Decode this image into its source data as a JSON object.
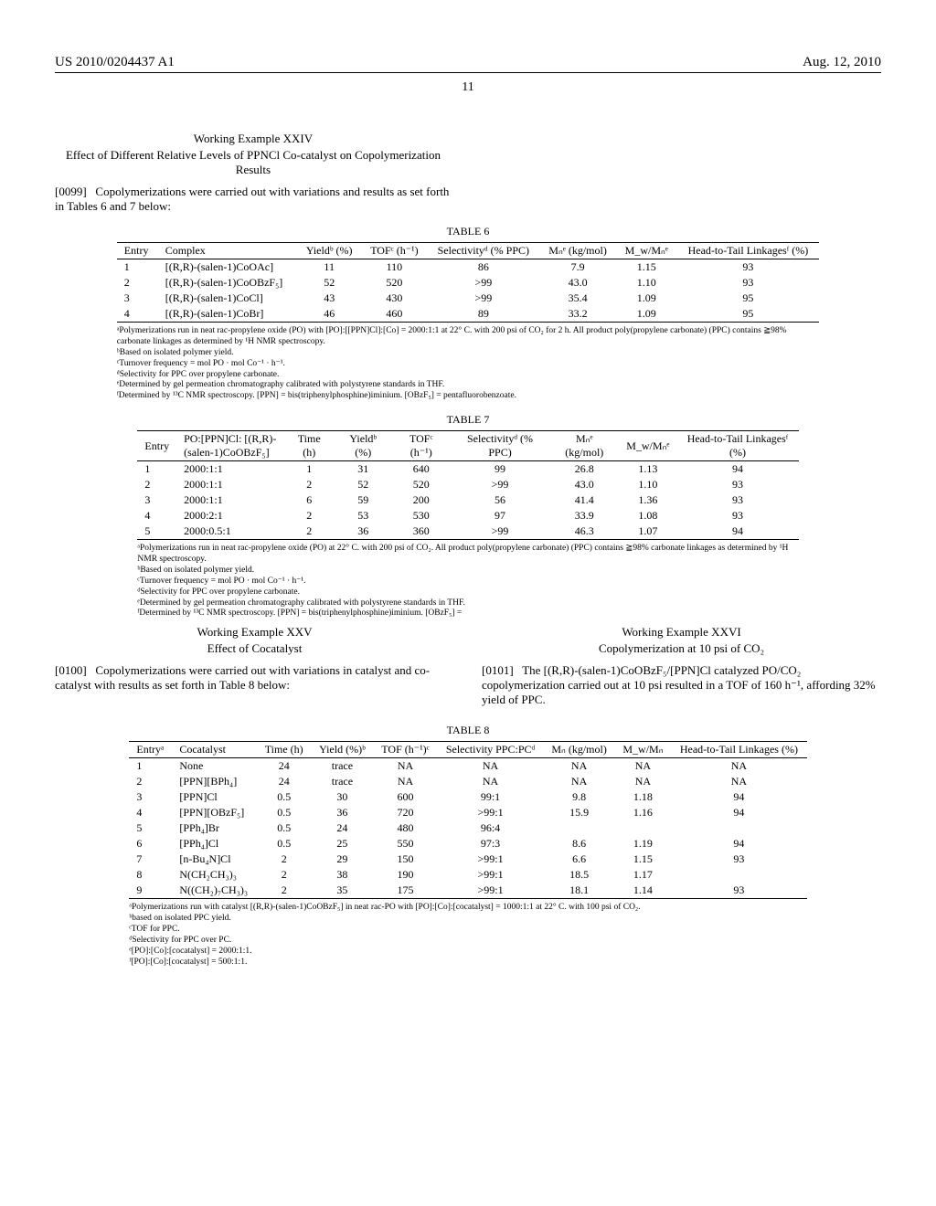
{
  "header": {
    "pub_no": "US 2010/0204437 A1",
    "pub_date": "Aug. 12, 2010",
    "page_no": "11"
  },
  "example24": {
    "title": "Working Example XXIV",
    "subtitle": "Effect of Different Relative Levels of PPNCl Co-catalyst on Copolymerization Results",
    "para_ref": "[0099]",
    "para_text": "Copolymerizations were carried out with variations and results as set forth in Tables 6 and 7 below:"
  },
  "table6": {
    "caption": "TABLE 6",
    "columns": [
      "Entry",
      "Complex",
      "Yieldᵇ (%)",
      "TOFᶜ (h⁻¹)",
      "Selectivityᵈ (% PPC)",
      "Mₙᵉ (kg/mol)",
      "M_w/Mₙᵉ",
      "Head-to-Tail Linkagesᶠ (%)"
    ],
    "rows": [
      [
        "1",
        "[(R,R)-(salen-1)CoOAc]",
        "11",
        "110",
        "86",
        "7.9",
        "1.15",
        "93"
      ],
      [
        "2",
        "[(R,R)-(salen-1)CoOBzF₅]",
        "52",
        "520",
        ">99",
        "43.0",
        "1.10",
        "93"
      ],
      [
        "3",
        "[(R,R)-(salen-1)CoCl]",
        "43",
        "430",
        ">99",
        "35.4",
        "1.09",
        "95"
      ],
      [
        "4",
        "[(R,R)-(salen-1)CoBr]",
        "46",
        "460",
        "89",
        "33.2",
        "1.09",
        "95"
      ]
    ],
    "footnotes": [
      "ᵃPolymerizations run in neat rac-propylene oxide (PO) with [PO]:[[PPN]Cl]:[Co] = 2000:1:1 at 22° C. with 200 psi of CO₂ for 2 h. All product poly(propylene carbonate) (PPC) contains ≧98% carbonate linkages as determined by ¹H NMR spectroscopy.",
      "ᵇBased on isolated polymer yield.",
      "ᶜTurnover frequency = mol PO · mol Co⁻¹ · h⁻¹.",
      "ᵈSelectivity for PPC over propylene carbonate.",
      "ᵉDetermined by gel permeation chromatography calibrated with polystyrene standards in THF.",
      "ᶠDetermined by ¹³C NMR spectroscopy. [PPN] = bis(triphenylphosphine)iminium. [OBzF₅] = pentafluorobenzoate."
    ]
  },
  "table7": {
    "caption": "TABLE 7",
    "columns": [
      "Entry",
      "PO:[PPN]Cl: [(R,R)-(salen-1)CoOBzF₅]",
      "Time (h)",
      "Yieldᵇ (%)",
      "TOFᶜ (h⁻¹)",
      "Selectivityᵈ (% PPC)",
      "Mₙᵉ (kg/mol)",
      "M_w/Mₙᵉ",
      "Head-to-Tail Linkagesᶠ (%)"
    ],
    "rows": [
      [
        "1",
        "2000:1:1",
        "1",
        "31",
        "640",
        "99",
        "26.8",
        "1.13",
        "94"
      ],
      [
        "2",
        "2000:1:1",
        "2",
        "52",
        "520",
        ">99",
        "43.0",
        "1.10",
        "93"
      ],
      [
        "3",
        "2000:1:1",
        "6",
        "59",
        "200",
        "56",
        "41.4",
        "1.36",
        "93"
      ],
      [
        "4",
        "2000:2:1",
        "2",
        "53",
        "530",
        "97",
        "33.9",
        "1.08",
        "93"
      ],
      [
        "5",
        "2000:0.5:1",
        "2",
        "36",
        "360",
        ">99",
        "46.3",
        "1.07",
        "94"
      ]
    ],
    "footnotes": [
      "ᵃPolymerizations run in neat rac-propylene oxide (PO) at 22° C. with 200 psi of CO₂. All product poly(propylene carbonate) (PPC) contains ≧98% carbonate linkages as determined by ¹H NMR spectroscopy.",
      "ᵇBased on isolated polymer yield.",
      "ᶜTurnover frequency = mol PO · mol Co⁻¹ · h⁻¹.",
      "ᵈSelectivity for PPC over propylene carbonate.",
      "ᵉDetermined by gel permeation chromatography calibrated with polystyrene standards in THF.",
      "ᶠDetermined by ¹³C NMR spectroscopy. [PPN] = bis(triphenylphosphine)iminium. [OBzF₅] ="
    ]
  },
  "example25": {
    "title": "Working Example XXV",
    "subtitle": "Effect of Cocatalyst",
    "para_ref": "[0100]",
    "para_text": "Copolymerizations were carried out with variations in catalyst and co-catalyst with results as set forth in Table 8 below:"
  },
  "example26": {
    "title": "Working Example XXVI",
    "subtitle": "Copolymerization at 10 psi of CO₂",
    "para_ref": "[0101]",
    "para_text": "The [(R,R)-(salen-1)CoOBzF₅/[PPN]Cl catalyzed PO/CO₂ copolymerization carried out at 10 psi resulted in a TOF of 160 h⁻¹, affording 32% yield of PPC."
  },
  "table8": {
    "caption": "TABLE 8",
    "columns": [
      "Entryᵃ",
      "Cocatalyst",
      "Time (h)",
      "Yield (%)ᵇ",
      "TOF (h⁻¹)ᶜ",
      "Selectivity PPC:PCᵈ",
      "Mₙ (kg/mol)",
      "M_w/Mₙ",
      "Head-to-Tail Linkages (%)"
    ],
    "rows": [
      [
        "1",
        "None",
        "24",
        "trace",
        "NA",
        "NA",
        "NA",
        "NA",
        "NA"
      ],
      [
        "2",
        "[PPN][BPh₄]",
        "24",
        "trace",
        "NA",
        "NA",
        "NA",
        "NA",
        "NA"
      ],
      [
        "3",
        "[PPN]Cl",
        "0.5",
        "30",
        "600",
        "99:1",
        "9.8",
        "1.18",
        "94"
      ],
      [
        "4",
        "[PPN][OBzF₅]",
        "0.5",
        "36",
        "720",
        ">99:1",
        "15.9",
        "1.16",
        "94"
      ],
      [
        "5",
        "[PPh₄]Br",
        "0.5",
        "24",
        "480",
        "96:4",
        "",
        "",
        ""
      ],
      [
        "6",
        "[PPh₄]Cl",
        "0.5",
        "25",
        "550",
        "97:3",
        "8.6",
        "1.19",
        "94"
      ],
      [
        "7",
        "[n-Bu₄N]Cl",
        "2",
        "29",
        "150",
        ">99:1",
        "6.6",
        "1.15",
        "93"
      ],
      [
        "8",
        "N(CH₂CH₃)₃",
        "2",
        "38",
        "190",
        ">99:1",
        "18.5",
        "1.17",
        ""
      ],
      [
        "9",
        "N((CH₂)₇CH₃)₃",
        "2",
        "35",
        "175",
        ">99:1",
        "18.1",
        "1.14",
        "93"
      ]
    ],
    "footnotes": [
      "ᵃPolymerizations run with catalyst [(R,R)-(salen-1)CoOBzF₅] in neat rac-PO with [PO]:[Co]:[cocatalyst] = 1000:1:1 at 22° C. with 100 psi of CO₂.",
      "ᵇbased on isolated PPC yield.",
      "ᶜTOF for PPC.",
      "ᵈSelectivity for PPC over PC.",
      "ᵉ[PO]:[Co]:[cocatalyst] = 2000:1:1.",
      "ᶠ[PO]:[Co]:[cocatalyst] = 500:1:1."
    ]
  }
}
